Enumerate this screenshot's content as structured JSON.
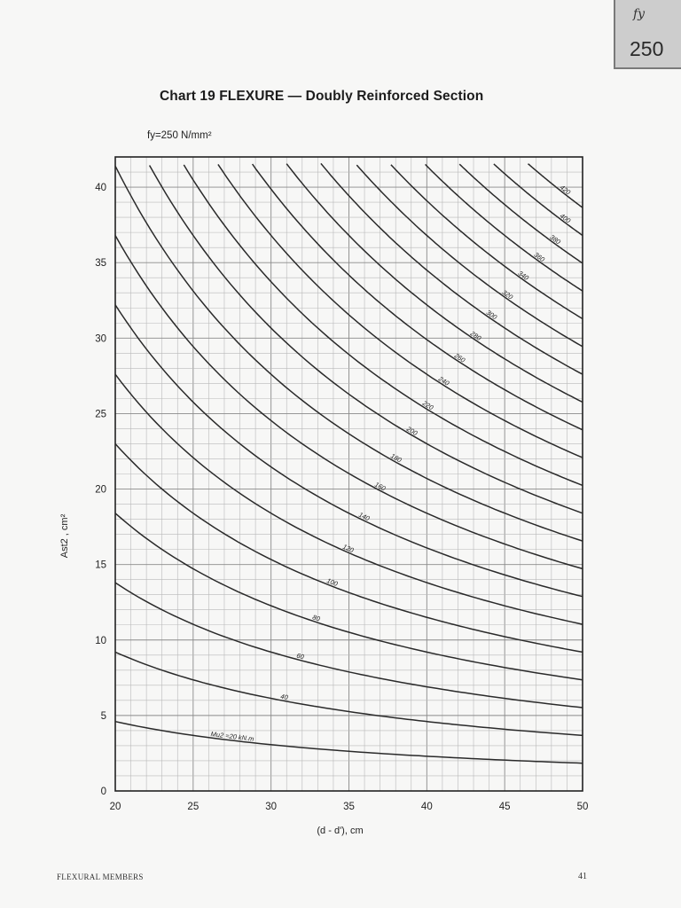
{
  "corner_tab": {
    "symbol": "fy",
    "value": "250"
  },
  "page_footer": {
    "left": "FLEXURAL MEMBERS",
    "right": "41"
  },
  "chart_data": {
    "type": "line",
    "title": "Chart 19 FLEXURE — Doubly Reinforced Section",
    "subtitle": "fy=250 N/mm²",
    "xlabel": "(d - d'), cm",
    "ylabel": "Ast2 , cm²",
    "xlim": [
      20,
      50
    ],
    "ylim": [
      0,
      42
    ],
    "x_ticks": [
      20,
      25,
      30,
      35,
      40,
      45,
      50
    ],
    "y_ticks": [
      0,
      5,
      10,
      15,
      20,
      25,
      30,
      35,
      40
    ],
    "grid": true,
    "curve_label_unit": "kN.m",
    "curve_label_prefix": "Mu2 =",
    "series": [
      {
        "name": "20",
        "points": [
          [
            20,
            4.6
          ],
          [
            25,
            3.7
          ],
          [
            30,
            3.06
          ],
          [
            35,
            2.62
          ],
          [
            40,
            2.3
          ],
          [
            45,
            2.04
          ],
          [
            50,
            1.84
          ]
        ]
      },
      {
        "name": "40",
        "points": [
          [
            20,
            9.2
          ],
          [
            25,
            7.35
          ],
          [
            30,
            6.12
          ],
          [
            35,
            5.25
          ],
          [
            40,
            4.6
          ],
          [
            45,
            4.08
          ],
          [
            50,
            3.68
          ]
        ]
      },
      {
        "name": "60",
        "points": [
          [
            20,
            13.8
          ],
          [
            25,
            11.05
          ],
          [
            30,
            9.2
          ],
          [
            35,
            7.88
          ],
          [
            40,
            6.9
          ],
          [
            45,
            6.13
          ],
          [
            50,
            5.52
          ]
        ]
      },
      {
        "name": "80",
        "points": [
          [
            20,
            18.4
          ],
          [
            25,
            14.7
          ],
          [
            30,
            12.25
          ],
          [
            35,
            10.5
          ],
          [
            40,
            9.2
          ],
          [
            45,
            8.18
          ],
          [
            50,
            7.36
          ]
        ]
      },
      {
        "name": "100",
        "points": [
          [
            20,
            23.0
          ],
          [
            25,
            18.4
          ],
          [
            30,
            15.3
          ],
          [
            35,
            13.14
          ],
          [
            40,
            11.5
          ],
          [
            45,
            10.22
          ],
          [
            50,
            9.2
          ]
        ]
      },
      {
        "name": "120",
        "points": [
          [
            20,
            27.6
          ],
          [
            25,
            22.1
          ],
          [
            30,
            18.4
          ],
          [
            35,
            15.77
          ],
          [
            40,
            13.8
          ],
          [
            45,
            12.27
          ],
          [
            50,
            11.04
          ]
        ]
      },
      {
        "name": "140",
        "points": [
          [
            20,
            32.2
          ],
          [
            25,
            25.76
          ],
          [
            30,
            21.47
          ],
          [
            35,
            18.4
          ],
          [
            40,
            16.1
          ],
          [
            45,
            14.31
          ],
          [
            50,
            12.88
          ]
        ]
      },
      {
        "name": "160",
        "points": [
          [
            20,
            36.8
          ],
          [
            25,
            29.44
          ],
          [
            30,
            24.53
          ],
          [
            35,
            21.03
          ],
          [
            40,
            18.4
          ],
          [
            45,
            16.36
          ],
          [
            50,
            14.72
          ]
        ]
      },
      {
        "name": "180",
        "points": [
          [
            20,
            41.4
          ],
          [
            25,
            33.12
          ],
          [
            30,
            27.6
          ],
          [
            35,
            23.66
          ],
          [
            40,
            20.7
          ],
          [
            45,
            18.4
          ],
          [
            50,
            16.56
          ]
        ]
      },
      {
        "name": "200",
        "points": [
          [
            22.2,
            41.5
          ],
          [
            25,
            36.8
          ],
          [
            30,
            30.67
          ],
          [
            35,
            26.29
          ],
          [
            40,
            23.0
          ],
          [
            45,
            20.44
          ],
          [
            50,
            18.4
          ]
        ]
      },
      {
        "name": "220",
        "points": [
          [
            24.4,
            41.5
          ],
          [
            25,
            40.48
          ],
          [
            30,
            33.73
          ],
          [
            35,
            28.91
          ],
          [
            40,
            25.3
          ],
          [
            45,
            22.49
          ],
          [
            50,
            20.24
          ]
        ]
      },
      {
        "name": "240",
        "points": [
          [
            26.6,
            41.5
          ],
          [
            30,
            36.8
          ],
          [
            35,
            31.54
          ],
          [
            40,
            27.6
          ],
          [
            45,
            24.53
          ],
          [
            50,
            22.08
          ]
        ]
      },
      {
        "name": "260",
        "points": [
          [
            28.8,
            41.5
          ],
          [
            30,
            39.87
          ],
          [
            35,
            34.17
          ],
          [
            40,
            29.9
          ],
          [
            45,
            26.58
          ],
          [
            50,
            23.92
          ]
        ]
      },
      {
        "name": "280",
        "points": [
          [
            31.0,
            41.5
          ],
          [
            35,
            36.8
          ],
          [
            40,
            32.2
          ],
          [
            45,
            28.62
          ],
          [
            50,
            25.76
          ]
        ]
      },
      {
        "name": "300",
        "points": [
          [
            33.2,
            41.5
          ],
          [
            35,
            39.43
          ],
          [
            40,
            34.5
          ],
          [
            45,
            30.67
          ],
          [
            50,
            27.6
          ]
        ]
      },
      {
        "name": "320",
        "points": [
          [
            35.5,
            41.5
          ],
          [
            40,
            36.8
          ],
          [
            45,
            32.71
          ],
          [
            50,
            29.44
          ]
        ]
      },
      {
        "name": "340",
        "points": [
          [
            37.7,
            41.5
          ],
          [
            40,
            39.1
          ],
          [
            45,
            34.76
          ],
          [
            50,
            31.28
          ]
        ]
      },
      {
        "name": "360",
        "points": [
          [
            39.9,
            41.5
          ],
          [
            45,
            36.8
          ],
          [
            50,
            33.12
          ]
        ]
      },
      {
        "name": "380",
        "points": [
          [
            42.1,
            41.5
          ],
          [
            45,
            38.84
          ],
          [
            50,
            34.96
          ]
        ]
      },
      {
        "name": "400",
        "points": [
          [
            44.3,
            41.5
          ],
          [
            50,
            36.8
          ]
        ]
      },
      {
        "name": "420",
        "points": [
          [
            46.5,
            41.5
          ],
          [
            50,
            38.64
          ]
        ]
      }
    ]
  }
}
